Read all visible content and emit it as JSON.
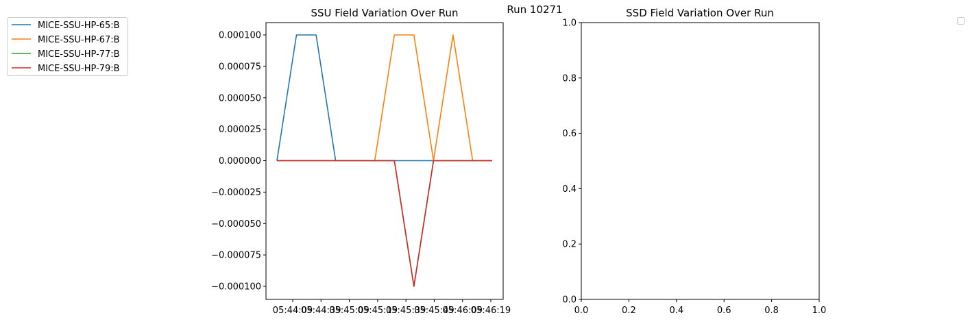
{
  "suptitle": "Run 10271",
  "chart_data": [
    {
      "type": "line",
      "title": "SSU Field Variation Over Run",
      "xlabel": "",
      "ylabel": "",
      "x_tick_labels": [
        "05:44:09",
        "05:44:39",
        "05:45:09",
        "05:45:19",
        "05:45:39",
        "05:45:49",
        "05:46:09",
        "05:46:19"
      ],
      "y_tick_labels": [
        "0.000100",
        "0.000075",
        "0.000050",
        "0.000025",
        "0.000000",
        "−0.000025",
        "−0.000050",
        "−0.000075",
        "−0.000100"
      ],
      "ylim": [
        -0.0001,
        0.0001
      ],
      "grid": false,
      "legend_position": "outside-left",
      "series": [
        {
          "name": "MICE-SSU-HP-65:B",
          "color": "#1f77b4",
          "values": [
            0,
            0.0001,
            0.0001,
            0,
            0,
            0,
            0,
            0,
            0,
            0,
            0,
            0
          ]
        },
        {
          "name": "MICE-SSU-HP-67:B",
          "color": "#ff7f0e",
          "values": [
            0,
            0,
            0,
            0,
            0,
            0,
            0.0001,
            0.0001,
            0,
            0.0001,
            0,
            0
          ]
        },
        {
          "name": "MICE-SSU-HP-77:B",
          "color": "#2ca02c",
          "values": [
            0,
            0,
            0,
            0,
            0,
            0,
            0,
            -0.0001,
            0,
            0,
            0,
            0
          ]
        },
        {
          "name": "MICE-SSU-HP-79:B",
          "color": "#d62728",
          "values": [
            0,
            0,
            0,
            0,
            0,
            0,
            0,
            -0.0001,
            0,
            0,
            0,
            0
          ]
        }
      ]
    },
    {
      "type": "line",
      "title": "SSD Field Variation Over Run",
      "xlabel": "",
      "ylabel": "",
      "xlim": [
        0,
        1
      ],
      "ylim": [
        0,
        1
      ],
      "x_tick_labels": [
        "0.0",
        "0.2",
        "0.4",
        "0.6",
        "0.8",
        "1.0"
      ],
      "y_tick_labels": [
        "0.0",
        "0.2",
        "0.4",
        "0.6",
        "0.8",
        "1.0"
      ],
      "grid": false,
      "legend_position": "top-right (empty)",
      "series": []
    }
  ]
}
